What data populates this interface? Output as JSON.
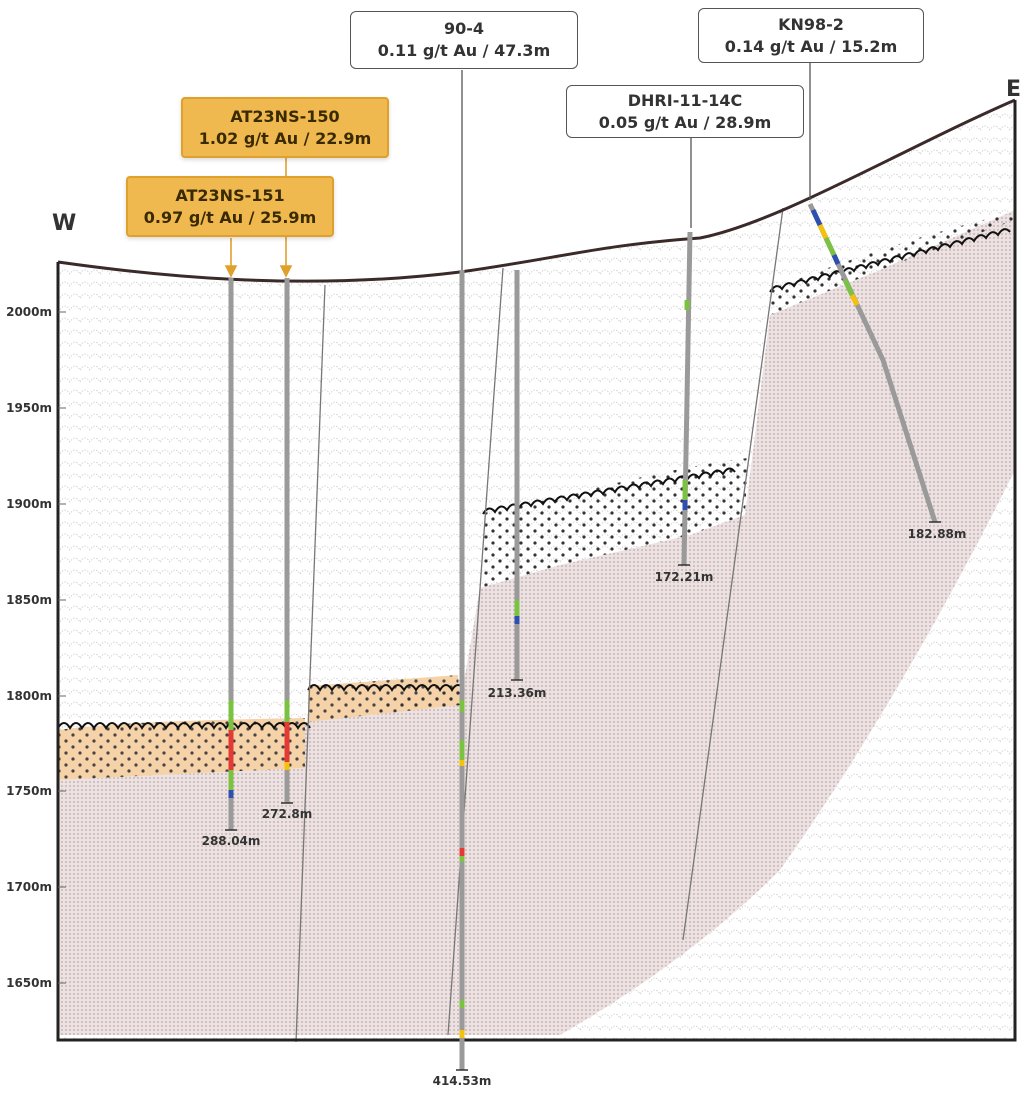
{
  "directions": {
    "west": "W",
    "east": "E"
  },
  "elevation_labels": [
    "2000m",
    "1950m",
    "1900m",
    "1850m",
    "1800m",
    "1750m",
    "1700m",
    "1650m"
  ],
  "holes": [
    {
      "id": "AT23NS-151",
      "grade": "0.97 g/t Au / 25.9m",
      "depth": "288.04m"
    },
    {
      "id": "AT23NS-150",
      "grade": "1.02 g/t Au / 22.9m",
      "depth": "272.8m"
    },
    {
      "id": "90-4",
      "grade": "0.11 g/t Au / 47.3m",
      "depth": "414.53m"
    },
    {
      "id": "",
      "grade": "",
      "depth": "213.36m"
    },
    {
      "id": "DHRI-11-14C",
      "grade": "0.05 g/t Au / 28.9m",
      "depth": "172.21m"
    },
    {
      "id": "KN98-2",
      "grade": "0.14 g/t Au / 15.2m",
      "depth": "182.88m"
    }
  ],
  "colors": {
    "highlight_callout": "#f0b94f",
    "topography": "#3b2a2a",
    "basement": "#d8c8c8",
    "orange_unit": "#f6d2a8",
    "drill_trace": "#9a9a9a",
    "high_grade": "#e53935",
    "mid_grade": "#f4c20d",
    "low_grade": "#7cc242",
    "trace_grade": "#2e4fb0"
  }
}
